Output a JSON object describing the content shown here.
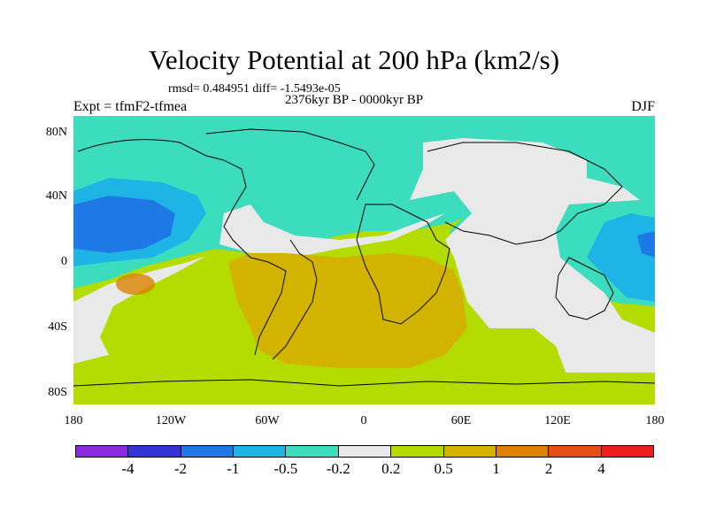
{
  "title": "Velocity Potential at 200 hPa (km2/s)",
  "stats": "rmsd= 0.484951 diff= -1.5493e-05",
  "period": "2376kyr BP - 0000kyr BP",
  "experiment": "Expt = tfmF2-tfmea",
  "season": "DJF",
  "lat_labels": [
    "80N",
    "40N",
    "0",
    "40S",
    "80S"
  ],
  "lon_labels": [
    "180",
    "120W",
    "60W",
    "0",
    "60E",
    "120E",
    "180"
  ],
  "colorbar": {
    "colors": [
      "#8a2be2",
      "#3434d6",
      "#1e78e6",
      "#1eb4e6",
      "#3cdcbe",
      "#e9e9e9",
      "#b4dc00",
      "#d2b400",
      "#dc8200",
      "#e65014",
      "#f01e1e"
    ],
    "labels": [
      "-4",
      "-2",
      "-1",
      "-0.5",
      "-0.2",
      "0.2",
      "0.5",
      "1",
      "2",
      "4"
    ]
  }
}
